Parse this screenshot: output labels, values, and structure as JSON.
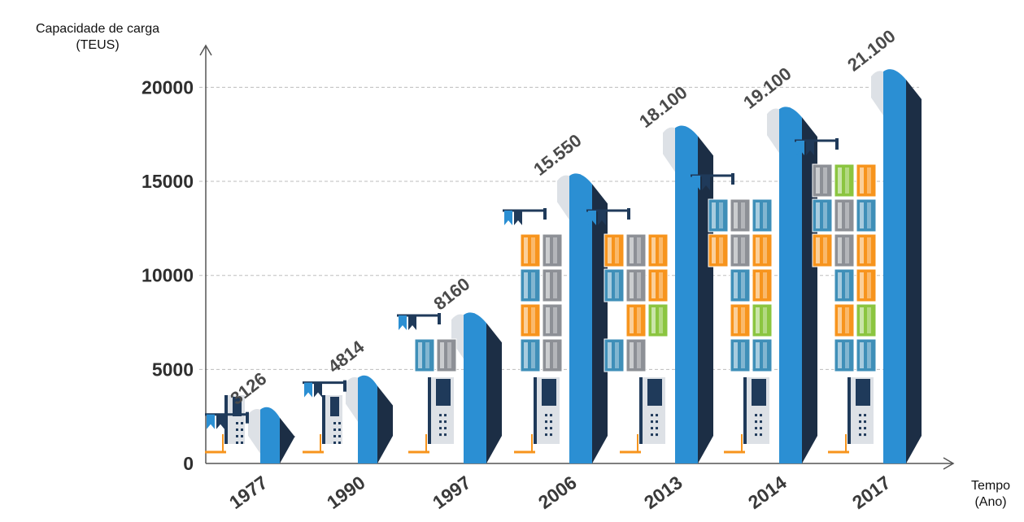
{
  "chart_data": {
    "type": "bar",
    "ylabel_line1": "Capacidade de carga",
    "ylabel_line2": "(TEUS)",
    "xlabel_line1": "Tempo",
    "xlabel_line2": "(Ano)",
    "categories": [
      "1977",
      "1990",
      "1997",
      "2006",
      "2013",
      "2014",
      "2017"
    ],
    "values": [
      3126,
      4814,
      8160,
      15550,
      18100,
      19100,
      21100
    ],
    "value_labels": [
      "3126",
      "4814",
      "8160",
      "15.550",
      "18.100",
      "19.100",
      "21.100"
    ],
    "yticks": [
      0,
      5000,
      10000,
      15000,
      20000
    ],
    "ylim": [
      0,
      22000
    ],
    "grid": true,
    "colors": {
      "hull": "#2b8fd3",
      "hull_dark": "#1c2e45",
      "bridge": "#dde1e6",
      "navy": "#1f3a5a",
      "orange": "#f7941d",
      "teal": "#3f8fb8",
      "gray": "#8d9096",
      "green": "#8bc540",
      "grid": "#bdbdbd",
      "axis": "#555555"
    }
  }
}
